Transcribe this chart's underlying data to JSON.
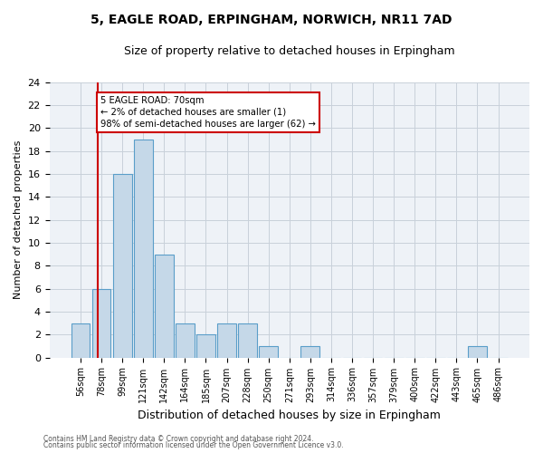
{
  "title1": "5, EAGLE ROAD, ERPINGHAM, NORWICH, NR11 7AD",
  "title2": "Size of property relative to detached houses in Erpingham",
  "xlabel": "Distribution of detached houses by size in Erpingham",
  "ylabel": "Number of detached properties",
  "bin_labels": [
    "56sqm",
    "78sqm",
    "99sqm",
    "121sqm",
    "142sqm",
    "164sqm",
    "185sqm",
    "207sqm",
    "228sqm",
    "250sqm",
    "271sqm",
    "293sqm",
    "314sqm",
    "336sqm",
    "357sqm",
    "379sqm",
    "400sqm",
    "422sqm",
    "443sqm",
    "465sqm",
    "486sqm"
  ],
  "bar_values": [
    3,
    6,
    16,
    19,
    9,
    3,
    2,
    3,
    3,
    1,
    0,
    1,
    0,
    0,
    0,
    0,
    0,
    0,
    0,
    1,
    0
  ],
  "bar_color": "#c5d8e8",
  "bar_edge_color": "#5a9ec9",
  "ylim": [
    0,
    24
  ],
  "yticks": [
    0,
    2,
    4,
    6,
    8,
    10,
    12,
    14,
    16,
    18,
    20,
    22,
    24
  ],
  "vline_x": 0.82,
  "vline_color": "#cc0000",
  "annotation_lines": [
    "5 EAGLE ROAD: 70sqm",
    "← 2% of detached houses are smaller (1)",
    "98% of semi-detached houses are larger (62) →"
  ],
  "annotation_box_color": "#cc0000",
  "footer1": "Contains HM Land Registry data © Crown copyright and database right 2024.",
  "footer2": "Contains public sector information licensed under the Open Government Licence v3.0.",
  "bg_color": "#eef2f7",
  "fig_bg_color": "#ffffff"
}
